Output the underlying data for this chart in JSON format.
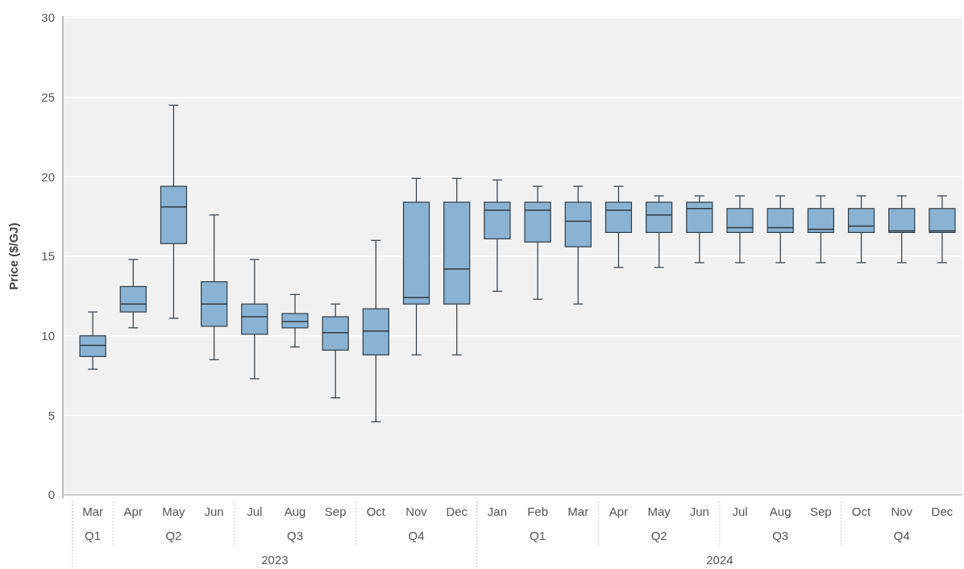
{
  "chart_data": {
    "type": "box",
    "ylabel": "Price ($/GJ)",
    "color": "#8ab3d3",
    "categories": [
      "Mar",
      "Apr",
      "May",
      "Jun",
      "Jul",
      "Aug",
      "Sep",
      "Oct",
      "Nov",
      "Dec",
      "Jan",
      "Feb",
      "Mar",
      "Apr",
      "May",
      "Jun",
      "Jul",
      "Aug",
      "Sep",
      "Oct",
      "Nov",
      "Dec"
    ],
    "boxes": [
      {
        "low": 7.9,
        "q1": 8.7,
        "median": 9.4,
        "q3": 10.0,
        "high": 11.5
      },
      {
        "low": 10.5,
        "q1": 11.5,
        "median": 12.0,
        "q3": 13.1,
        "high": 14.8
      },
      {
        "low": 11.1,
        "q1": 15.8,
        "median": 18.1,
        "q3": 19.4,
        "high": 24.5
      },
      {
        "low": 8.5,
        "q1": 10.6,
        "median": 12.0,
        "q3": 13.4,
        "high": 17.6
      },
      {
        "low": 7.3,
        "q1": 10.1,
        "median": 11.2,
        "q3": 12.0,
        "high": 14.8
      },
      {
        "low": 9.3,
        "q1": 10.5,
        "median": 10.9,
        "q3": 11.4,
        "high": 12.6
      },
      {
        "low": 6.1,
        "q1": 9.1,
        "median": 10.2,
        "q3": 11.2,
        "high": 12.0
      },
      {
        "low": 4.6,
        "q1": 8.8,
        "median": 10.3,
        "q3": 11.7,
        "high": 16.0
      },
      {
        "low": 8.8,
        "q1": 12.0,
        "median": 12.4,
        "q3": 18.4,
        "high": 19.9
      },
      {
        "low": 8.8,
        "q1": 12.0,
        "median": 14.2,
        "q3": 18.4,
        "high": 19.9
      },
      {
        "low": 12.8,
        "q1": 16.1,
        "median": 17.9,
        "q3": 18.4,
        "high": 19.8
      },
      {
        "low": 12.3,
        "q1": 15.9,
        "median": 17.9,
        "q3": 18.4,
        "high": 19.4
      },
      {
        "low": 12.0,
        "q1": 15.6,
        "median": 17.2,
        "q3": 18.4,
        "high": 19.4
      },
      {
        "low": 14.3,
        "q1": 16.5,
        "median": 17.9,
        "q3": 18.4,
        "high": 19.4
      },
      {
        "low": 14.3,
        "q1": 16.5,
        "median": 17.6,
        "q3": 18.4,
        "high": 18.8
      },
      {
        "low": 14.6,
        "q1": 16.5,
        "median": 18.0,
        "q3": 18.4,
        "high": 18.8
      },
      {
        "low": 14.6,
        "q1": 16.5,
        "median": 16.8,
        "q3": 18.0,
        "high": 18.8
      },
      {
        "low": 14.6,
        "q1": 16.5,
        "median": 16.8,
        "q3": 18.0,
        "high": 18.8
      },
      {
        "low": 14.6,
        "q1": 16.5,
        "median": 16.7,
        "q3": 18.0,
        "high": 18.8
      },
      {
        "low": 14.6,
        "q1": 16.5,
        "median": 16.9,
        "q3": 18.0,
        "high": 18.8
      },
      {
        "low": 14.6,
        "q1": 16.5,
        "median": 16.6,
        "q3": 18.0,
        "high": 18.8
      },
      {
        "low": 14.6,
        "q1": 16.5,
        "median": 16.6,
        "q3": 18.0,
        "high": 18.8
      }
    ],
    "ylim": [
      0,
      30
    ],
    "yticks": [
      0,
      5,
      10,
      15,
      20,
      25,
      30
    ],
    "grid": "y",
    "annotations": [
      "Q1",
      "Q2",
      "Q3",
      "Q4",
      "Q1",
      "Q2",
      "Q3",
      "Q4",
      "2023",
      "2024"
    ]
  }
}
